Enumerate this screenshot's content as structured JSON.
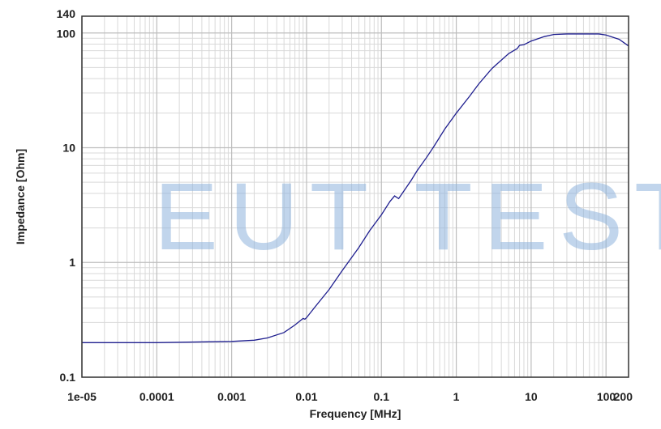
{
  "chart_data": {
    "type": "line",
    "xlabel": "Frequency [MHz]",
    "ylabel": "Impedance [Ohm]",
    "x_scale": "log",
    "y_scale": "log",
    "xlim": [
      1e-05,
      200
    ],
    "ylim": [
      0.1,
      140
    ],
    "grid": true,
    "legend": "none",
    "x_ticks": [
      {
        "value": 1e-05,
        "label": "1e-05"
      },
      {
        "value": 0.0001,
        "label": "0.0001"
      },
      {
        "value": 0.001,
        "label": "0.001"
      },
      {
        "value": 0.01,
        "label": "0.01"
      },
      {
        "value": 0.1,
        "label": "0.1"
      },
      {
        "value": 1,
        "label": "1"
      },
      {
        "value": 10,
        "label": "10"
      },
      {
        "value": 100,
        "label": "100"
      },
      {
        "value": 200,
        "label": "200"
      }
    ],
    "y_ticks": [
      {
        "value": 0.1,
        "label": "0.1"
      },
      {
        "value": 1,
        "label": "1"
      },
      {
        "value": 10,
        "label": "10"
      },
      {
        "value": 100,
        "label": "100"
      },
      {
        "value": 140,
        "label": "140"
      }
    ],
    "series": [
      {
        "color": "#1f1f8f",
        "x": [
          1e-05,
          0.0001,
          0.001,
          0.002,
          0.003,
          0.005,
          0.007,
          0.009,
          0.0095,
          0.01,
          0.013,
          0.02,
          0.03,
          0.05,
          0.07,
          0.1,
          0.13,
          0.15,
          0.17,
          0.2,
          0.25,
          0.3,
          0.4,
          0.5,
          0.7,
          1,
          1.5,
          2,
          3,
          5,
          6.5,
          7,
          8,
          10,
          15,
          20,
          30,
          50,
          80,
          100,
          150,
          200
        ],
        "y": [
          0.2,
          0.2,
          0.205,
          0.21,
          0.22,
          0.245,
          0.285,
          0.325,
          0.32,
          0.33,
          0.41,
          0.58,
          0.85,
          1.35,
          1.9,
          2.6,
          3.4,
          3.8,
          3.6,
          4.2,
          5.2,
          6.3,
          8.2,
          10.2,
          14.5,
          20,
          28,
          36,
          49,
          66,
          73,
          78,
          79,
          85,
          93,
          97,
          98,
          98,
          98,
          96,
          88,
          77
        ]
      }
    ],
    "annotations": [
      "EUT TEST"
    ]
  }
}
